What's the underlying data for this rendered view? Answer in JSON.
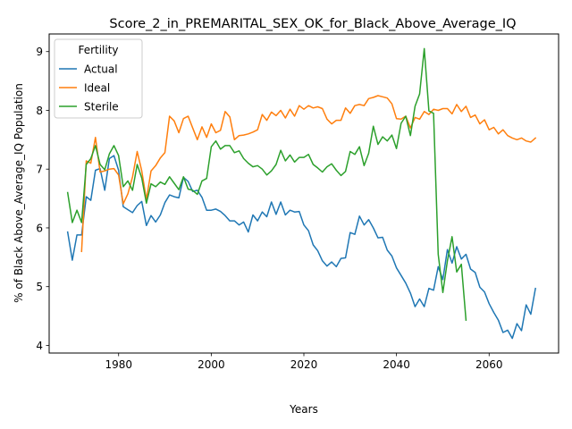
{
  "chart_data": {
    "type": "line",
    "title": "Score_2_in_PREMARITAL_SEX_OK_for_Black_Above_Average_IQ",
    "xlabel": "Years",
    "ylabel": "% of Black Above_Average_IQ Population",
    "xlim": [
      1965,
      2075
    ],
    "ylim": [
      3.87,
      9.3
    ],
    "xticks": [
      1980,
      2000,
      2020,
      2040,
      2060
    ],
    "yticks": [
      4,
      5,
      6,
      7,
      8,
      9
    ],
    "grid": false,
    "legend": {
      "title": "Fertility",
      "placement": "top-left"
    },
    "series": [
      {
        "name": "Actual",
        "color": "#1f77b4",
        "x": [
          1969,
          1970,
          1971,
          1972,
          1973,
          1974,
          1975,
          1976,
          1977,
          1978,
          1979,
          1980,
          1981,
          1982,
          1983,
          1984,
          1985,
          1986,
          1987,
          1988,
          1989,
          1990,
          1991,
          1992,
          1993,
          1994,
          1995,
          1996,
          1997,
          1998,
          1999,
          2000,
          2001,
          2002,
          2003,
          2004,
          2005,
          2006,
          2007,
          2008,
          2009,
          2010,
          2011,
          2012,
          2013,
          2014,
          2015,
          2016,
          2017,
          2018,
          2019,
          2020,
          2021,
          2022,
          2023,
          2024,
          2025,
          2026,
          2027,
          2028,
          2029,
          2030,
          2031,
          2032,
          2033,
          2034,
          2035,
          2036,
          2037,
          2038,
          2039,
          2040,
          2041,
          2042,
          2043,
          2044,
          2045,
          2046,
          2047,
          2048,
          2049,
          2050,
          2051,
          2052,
          2053,
          2054,
          2055,
          2056,
          2057,
          2058,
          2059,
          2060,
          2061,
          2062,
          2063,
          2064,
          2065,
          2066,
          2067,
          2068,
          2069,
          2070
        ],
        "values": [
          5.93,
          5.45,
          5.88,
          5.88,
          6.53,
          6.47,
          6.98,
          7.01,
          6.64,
          7.18,
          7.23,
          6.98,
          6.36,
          6.31,
          6.26,
          6.38,
          6.45,
          6.04,
          6.21,
          6.1,
          6.22,
          6.43,
          6.56,
          6.53,
          6.51,
          6.86,
          6.79,
          6.62,
          6.64,
          6.52,
          6.3,
          6.3,
          6.32,
          6.28,
          6.21,
          6.12,
          6.12,
          6.05,
          6.1,
          5.93,
          6.22,
          6.12,
          6.27,
          6.19,
          6.44,
          6.23,
          6.44,
          6.22,
          6.3,
          6.27,
          6.28,
          6.05,
          5.95,
          5.71,
          5.61,
          5.44,
          5.35,
          5.42,
          5.34,
          5.48,
          5.49,
          5.92,
          5.89,
          6.2,
          6.05,
          6.14,
          6.0,
          5.83,
          5.84,
          5.62,
          5.52,
          5.32,
          5.19,
          5.06,
          4.89,
          4.66,
          4.79,
          4.66,
          4.97,
          4.94,
          5.34,
          5.12,
          5.63,
          5.4,
          5.68,
          5.47,
          5.55,
          5.3,
          5.24,
          4.99,
          4.91,
          4.71,
          4.56,
          4.43,
          4.22,
          4.26,
          4.12,
          4.37,
          4.25,
          4.69,
          4.53,
          4.97
        ]
      },
      {
        "name": "Ideal",
        "color": "#ff7f0e",
        "x": [
          1972,
          1973,
          1974,
          1975,
          1976,
          1977,
          1978,
          1979,
          1980,
          1981,
          1982,
          1983,
          1984,
          1985,
          1986,
          1987,
          1988,
          1989,
          1990,
          1991,
          1992,
          1993,
          1994,
          1995,
          1996,
          1997,
          1998,
          1999,
          2000,
          2001,
          2002,
          2003,
          2004,
          2005,
          2006,
          2007,
          2008,
          2009,
          2010,
          2011,
          2012,
          2013,
          2014,
          2015,
          2016,
          2017,
          2018,
          2019,
          2020,
          2021,
          2022,
          2023,
          2024,
          2025,
          2026,
          2027,
          2028,
          2029,
          2030,
          2031,
          2032,
          2033,
          2034,
          2035,
          2036,
          2037,
          2038,
          2039,
          2040,
          2041,
          2042,
          2043,
          2044,
          2045,
          2046,
          2047,
          2048,
          2049,
          2050,
          2051,
          2052,
          2053,
          2054,
          2055,
          2056,
          2057,
          2058,
          2059,
          2060,
          2061,
          2062,
          2063,
          2064,
          2065,
          2066,
          2067,
          2068,
          2069,
          2070
        ],
        "values": [
          5.6,
          7.14,
          7.1,
          7.54,
          6.95,
          6.97,
          7.0,
          7.01,
          6.9,
          6.41,
          6.58,
          6.87,
          7.3,
          6.97,
          6.48,
          6.97,
          7.06,
          7.19,
          7.28,
          7.9,
          7.82,
          7.62,
          7.86,
          7.9,
          7.7,
          7.5,
          7.72,
          7.54,
          7.77,
          7.62,
          7.66,
          7.98,
          7.89,
          7.5,
          7.57,
          7.58,
          7.6,
          7.63,
          7.67,
          7.93,
          7.83,
          7.97,
          7.91,
          8.0,
          7.87,
          8.02,
          7.9,
          8.08,
          8.02,
          8.08,
          8.04,
          8.06,
          8.03,
          7.85,
          7.77,
          7.83,
          7.83,
          8.04,
          7.95,
          8.08,
          8.1,
          8.08,
          8.2,
          8.22,
          8.25,
          8.23,
          8.21,
          8.11,
          7.86,
          7.85,
          7.9,
          7.7,
          7.88,
          7.85,
          7.98,
          7.93,
          8.02,
          8.0,
          8.03,
          8.03,
          7.94,
          8.1,
          7.98,
          8.07,
          7.88,
          7.92,
          7.77,
          7.84,
          7.67,
          7.71,
          7.6,
          7.67,
          7.57,
          7.53,
          7.5,
          7.53,
          7.48,
          7.46,
          7.53
        ]
      },
      {
        "name": "Sterile",
        "color": "#2ca02c",
        "x": [
          1969,
          1970,
          1971,
          1972,
          1973,
          1974,
          1975,
          1976,
          1977,
          1978,
          1979,
          1980,
          1981,
          1982,
          1983,
          1984,
          1985,
          1986,
          1987,
          1988,
          1989,
          1990,
          1991,
          1992,
          1993,
          1994,
          1995,
          1996,
          1997,
          1998,
          1999,
          2000,
          2001,
          2002,
          2003,
          2004,
          2005,
          2006,
          2007,
          2008,
          2009,
          2010,
          2011,
          2012,
          2013,
          2014,
          2015,
          2016,
          2017,
          2018,
          2019,
          2020,
          2021,
          2022,
          2023,
          2024,
          2025,
          2026,
          2027,
          2028,
          2029,
          2030,
          2031,
          2032,
          2033,
          2034,
          2035,
          2036,
          2037,
          2038,
          2039,
          2040,
          2041,
          2042,
          2043,
          2044,
          2045,
          2046,
          2047,
          2048,
          2049,
          2050,
          2051,
          2052,
          2053,
          2054,
          2055
        ],
        "values": [
          6.6,
          6.09,
          6.3,
          6.09,
          7.08,
          7.18,
          7.4,
          7.08,
          6.99,
          7.26,
          7.4,
          7.23,
          6.7,
          6.8,
          6.64,
          7.08,
          6.85,
          6.42,
          6.75,
          6.7,
          6.78,
          6.74,
          6.87,
          6.76,
          6.65,
          6.87,
          6.66,
          6.64,
          6.57,
          6.8,
          6.84,
          7.38,
          7.48,
          7.34,
          7.4,
          7.4,
          7.28,
          7.31,
          7.18,
          7.1,
          7.04,
          7.06,
          7.0,
          6.9,
          6.97,
          7.08,
          7.32,
          7.14,
          7.24,
          7.12,
          7.2,
          7.2,
          7.25,
          7.08,
          7.02,
          6.95,
          7.04,
          7.09,
          6.98,
          6.89,
          6.96,
          7.3,
          7.25,
          7.38,
          7.06,
          7.27,
          7.73,
          7.42,
          7.55,
          7.48,
          7.58,
          7.35,
          7.78,
          7.9,
          7.57,
          8.07,
          8.28,
          9.05,
          7.99,
          7.95,
          5.55,
          4.9,
          5.44,
          5.85,
          5.25,
          5.38,
          4.43
        ]
      }
    ]
  }
}
